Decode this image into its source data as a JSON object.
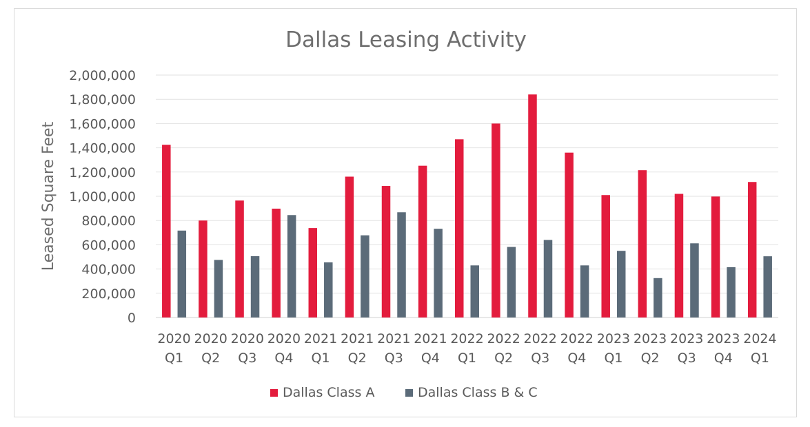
{
  "chart_data": {
    "type": "bar",
    "title": "Dallas Leasing Activity",
    "xlabel": "",
    "ylabel": "Leased Square Feet",
    "ylim": [
      0,
      2000000
    ],
    "yticks": [
      0,
      200000,
      400000,
      600000,
      800000,
      1000000,
      1200000,
      1400000,
      1600000,
      1800000,
      2000000
    ],
    "ytick_labels": [
      "0",
      "200,000",
      "400,000",
      "600,000",
      "800,000",
      "1,000,000",
      "1,200,000",
      "1,400,000",
      "1,600,000",
      "1,800,000",
      "2,000,000"
    ],
    "grid": true,
    "legend_position": "bottom",
    "categories": [
      {
        "year": "2020",
        "quarter": "Q1"
      },
      {
        "year": "2020",
        "quarter": "Q2"
      },
      {
        "year": "2020",
        "quarter": "Q3"
      },
      {
        "year": "2020",
        "quarter": "Q4"
      },
      {
        "year": "2021",
        "quarter": "Q1"
      },
      {
        "year": "2021",
        "quarter": "Q2"
      },
      {
        "year": "2021",
        "quarter": "Q3"
      },
      {
        "year": "2021",
        "quarter": "Q4"
      },
      {
        "year": "2022",
        "quarter": "Q1"
      },
      {
        "year": "2022",
        "quarter": "Q2"
      },
      {
        "year": "2022",
        "quarter": "Q3"
      },
      {
        "year": "2022",
        "quarter": "Q4"
      },
      {
        "year": "2023",
        "quarter": "Q1"
      },
      {
        "year": "2023",
        "quarter": "Q2"
      },
      {
        "year": "2023",
        "quarter": "Q3"
      },
      {
        "year": "2023",
        "quarter": "Q4"
      },
      {
        "year": "2024",
        "quarter": "Q1"
      }
    ],
    "series": [
      {
        "name": "Dallas Class A",
        "color": "#e31c3d",
        "values": [
          1425000,
          800000,
          965000,
          898000,
          738000,
          1162000,
          1085000,
          1252000,
          1470000,
          1600000,
          1840000,
          1360000,
          1010000,
          1215000,
          1020000,
          998000,
          1118000
        ]
      },
      {
        "name": "Dallas Class B & C",
        "color": "#5b6b79",
        "values": [
          717000,
          475000,
          506000,
          845000,
          455000,
          678000,
          868000,
          732000,
          430000,
          582000,
          640000,
          430000,
          550000,
          325000,
          612000,
          415000,
          505000
        ]
      }
    ]
  }
}
